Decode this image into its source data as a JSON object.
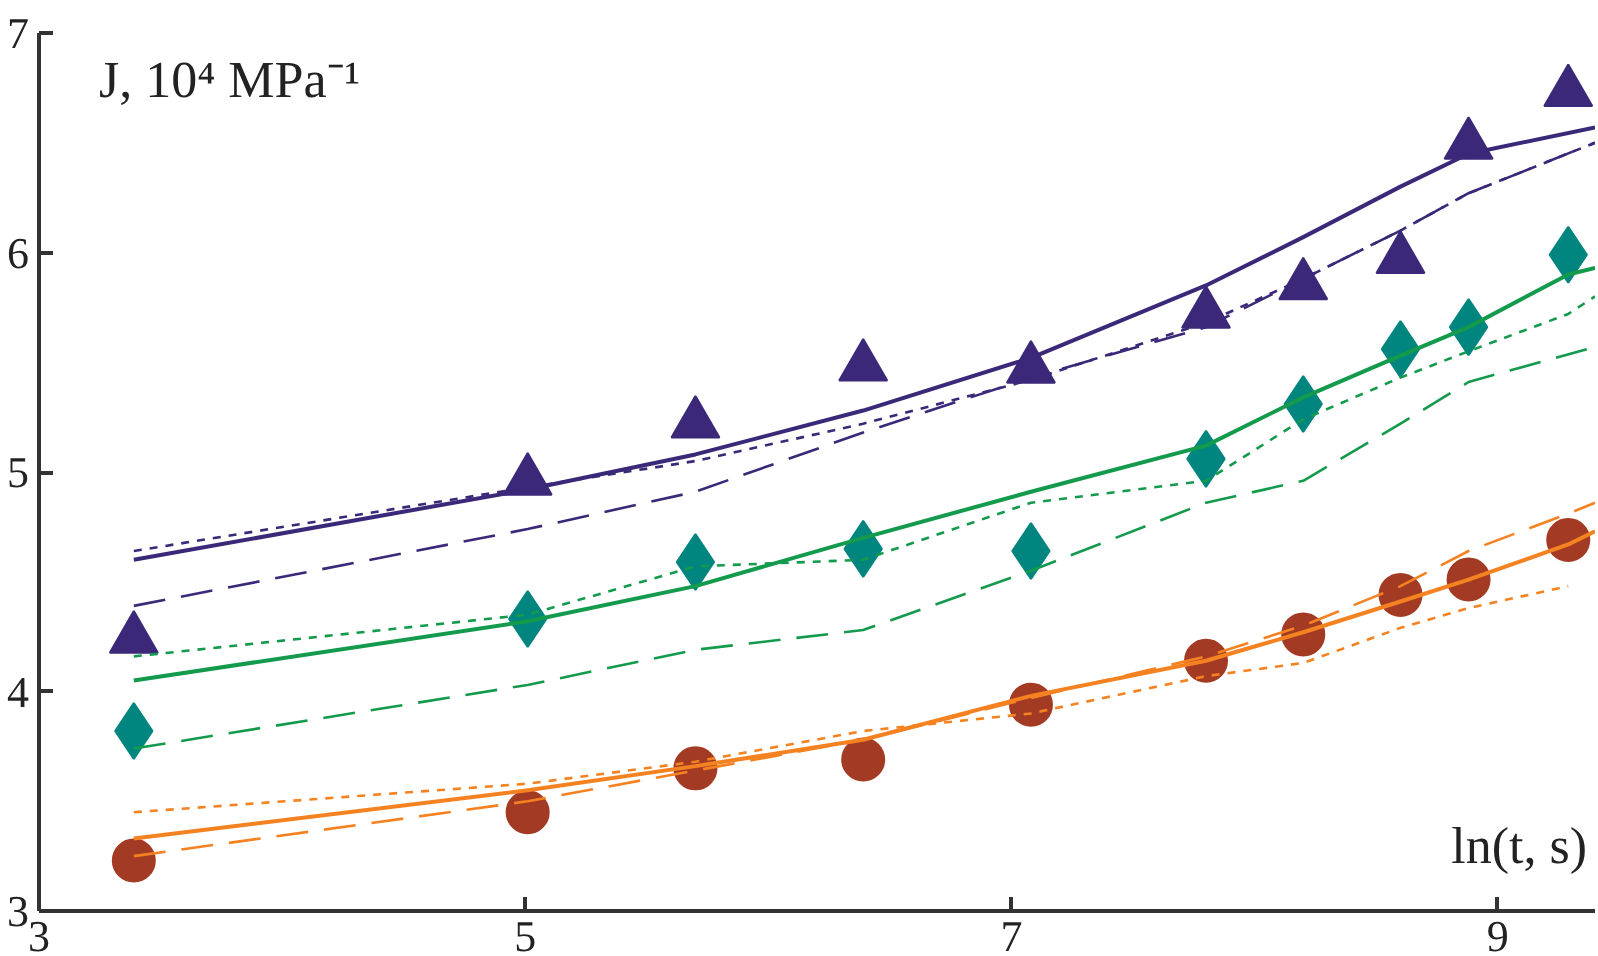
{
  "chart_data": {
    "type": "line",
    "xlabel": "ln(t, s)",
    "ylabel": "J, 10⁴ MPa⁻¹",
    "xlim": [
      3,
      9.4
    ],
    "ylim": [
      3,
      7
    ],
    "xticks": [
      3,
      5,
      7,
      9
    ],
    "yticks": [
      3,
      4,
      5,
      6,
      7
    ],
    "grid": false,
    "x": [
      3.39,
      5.01,
      5.7,
      6.39,
      7.08,
      7.8,
      8.2,
      8.6,
      8.88,
      9.29
    ],
    "series": [
      {
        "line_style": "solid",
        "color": "#3b2878",
        "x": [
          3.39,
          5.01,
          5.7,
          6.39,
          7.08,
          7.8,
          8.2,
          8.6,
          8.88,
          9.4
        ],
        "values": [
          4.6,
          4.92,
          5.08,
          5.28,
          5.52,
          5.85,
          6.07,
          6.3,
          6.45,
          6.57
        ]
      },
      {
        "line_style": "dotted",
        "color": "#3b2878",
        "x": [
          3.39,
          5.01,
          5.7,
          6.39,
          7.08,
          7.8,
          8.2,
          8.6,
          8.88,
          9.4
        ],
        "values": [
          4.64,
          4.93,
          5.05,
          5.22,
          5.42,
          5.68,
          5.88,
          6.1,
          6.27,
          6.5
        ]
      },
      {
        "line_style": "dashed",
        "color": "#3b2878",
        "x": [
          3.39,
          5.01,
          5.7,
          6.39,
          7.08,
          7.8,
          8.2,
          8.6,
          8.88,
          9.4
        ],
        "values": [
          4.39,
          4.74,
          4.91,
          5.18,
          5.43,
          5.66,
          5.88,
          6.1,
          6.27,
          6.5
        ]
      },
      {
        "line_style": "solid",
        "color": "#139a4c",
        "x": [
          3.39,
          5.01,
          5.7,
          6.39,
          7.08,
          7.8,
          8.2,
          8.6,
          8.88,
          9.29,
          9.4
        ],
        "values": [
          4.05,
          4.32,
          4.48,
          4.7,
          4.91,
          5.12,
          5.34,
          5.53,
          5.66,
          5.9,
          5.93
        ]
      },
      {
        "line_style": "dotted",
        "color": "#139a4c",
        "x": [
          3.39,
          5.01,
          5.7,
          6.39,
          7.08,
          7.8,
          8.2,
          8.6,
          8.88,
          9.29,
          9.4
        ],
        "values": [
          4.16,
          4.35,
          4.57,
          4.6,
          4.86,
          4.96,
          5.24,
          5.43,
          5.55,
          5.72,
          5.8
        ]
      },
      {
        "line_style": "dashed",
        "color": "#139a4c",
        "x": [
          3.39,
          5.01,
          5.7,
          6.39,
          7.08,
          7.8,
          8.2,
          8.6,
          8.88,
          9.4
        ],
        "values": [
          3.74,
          4.03,
          4.19,
          4.28,
          4.55,
          4.86,
          4.96,
          5.22,
          5.41,
          5.57
        ]
      },
      {
        "line_style": "solid",
        "color": "#f58220",
        "x": [
          3.39,
          5.01,
          5.7,
          6.39,
          7.08,
          7.8,
          8.2,
          8.6,
          8.88,
          9.29,
          9.4
        ],
        "values": [
          3.33,
          3.55,
          3.66,
          3.78,
          3.98,
          4.14,
          4.27,
          4.41,
          4.51,
          4.67,
          4.73
        ]
      },
      {
        "line_style": "dashed",
        "color": "#f58220",
        "x": [
          3.39,
          5.01,
          5.7,
          6.39,
          7.08,
          7.8,
          8.2,
          8.6,
          8.88,
          9.29,
          9.4
        ],
        "values": [
          3.25,
          3.5,
          3.64,
          3.78,
          3.97,
          4.16,
          4.3,
          4.48,
          4.64,
          4.81,
          4.86
        ]
      },
      {
        "line_style": "dotted",
        "color": "#f58220",
        "x": [
          3.39,
          5.01,
          5.7,
          6.39,
          7.08,
          7.8,
          8.2,
          8.6,
          8.88,
          9.29
        ],
        "values": [
          3.45,
          3.58,
          3.68,
          3.82,
          3.9,
          4.07,
          4.13,
          4.29,
          4.38,
          4.48
        ]
      },
      {
        "type": "scatter",
        "marker": "triangle",
        "color": "#3b2878",
        "values": [
          4.24,
          4.96,
          5.22,
          5.48,
          5.47,
          5.72,
          5.85,
          5.97,
          6.49,
          6.73
        ]
      },
      {
        "type": "scatter",
        "marker": "diamond",
        "color": "#00857f",
        "values": [
          3.82,
          4.33,
          4.59,
          4.65,
          4.64,
          5.06,
          5.31,
          5.56,
          5.66,
          5.99
        ]
      },
      {
        "type": "scatter",
        "marker": "circle",
        "color": "#a33b24",
        "values": [
          3.23,
          3.45,
          3.65,
          3.69,
          3.94,
          4.14,
          4.26,
          4.44,
          4.51,
          4.69
        ]
      }
    ]
  }
}
